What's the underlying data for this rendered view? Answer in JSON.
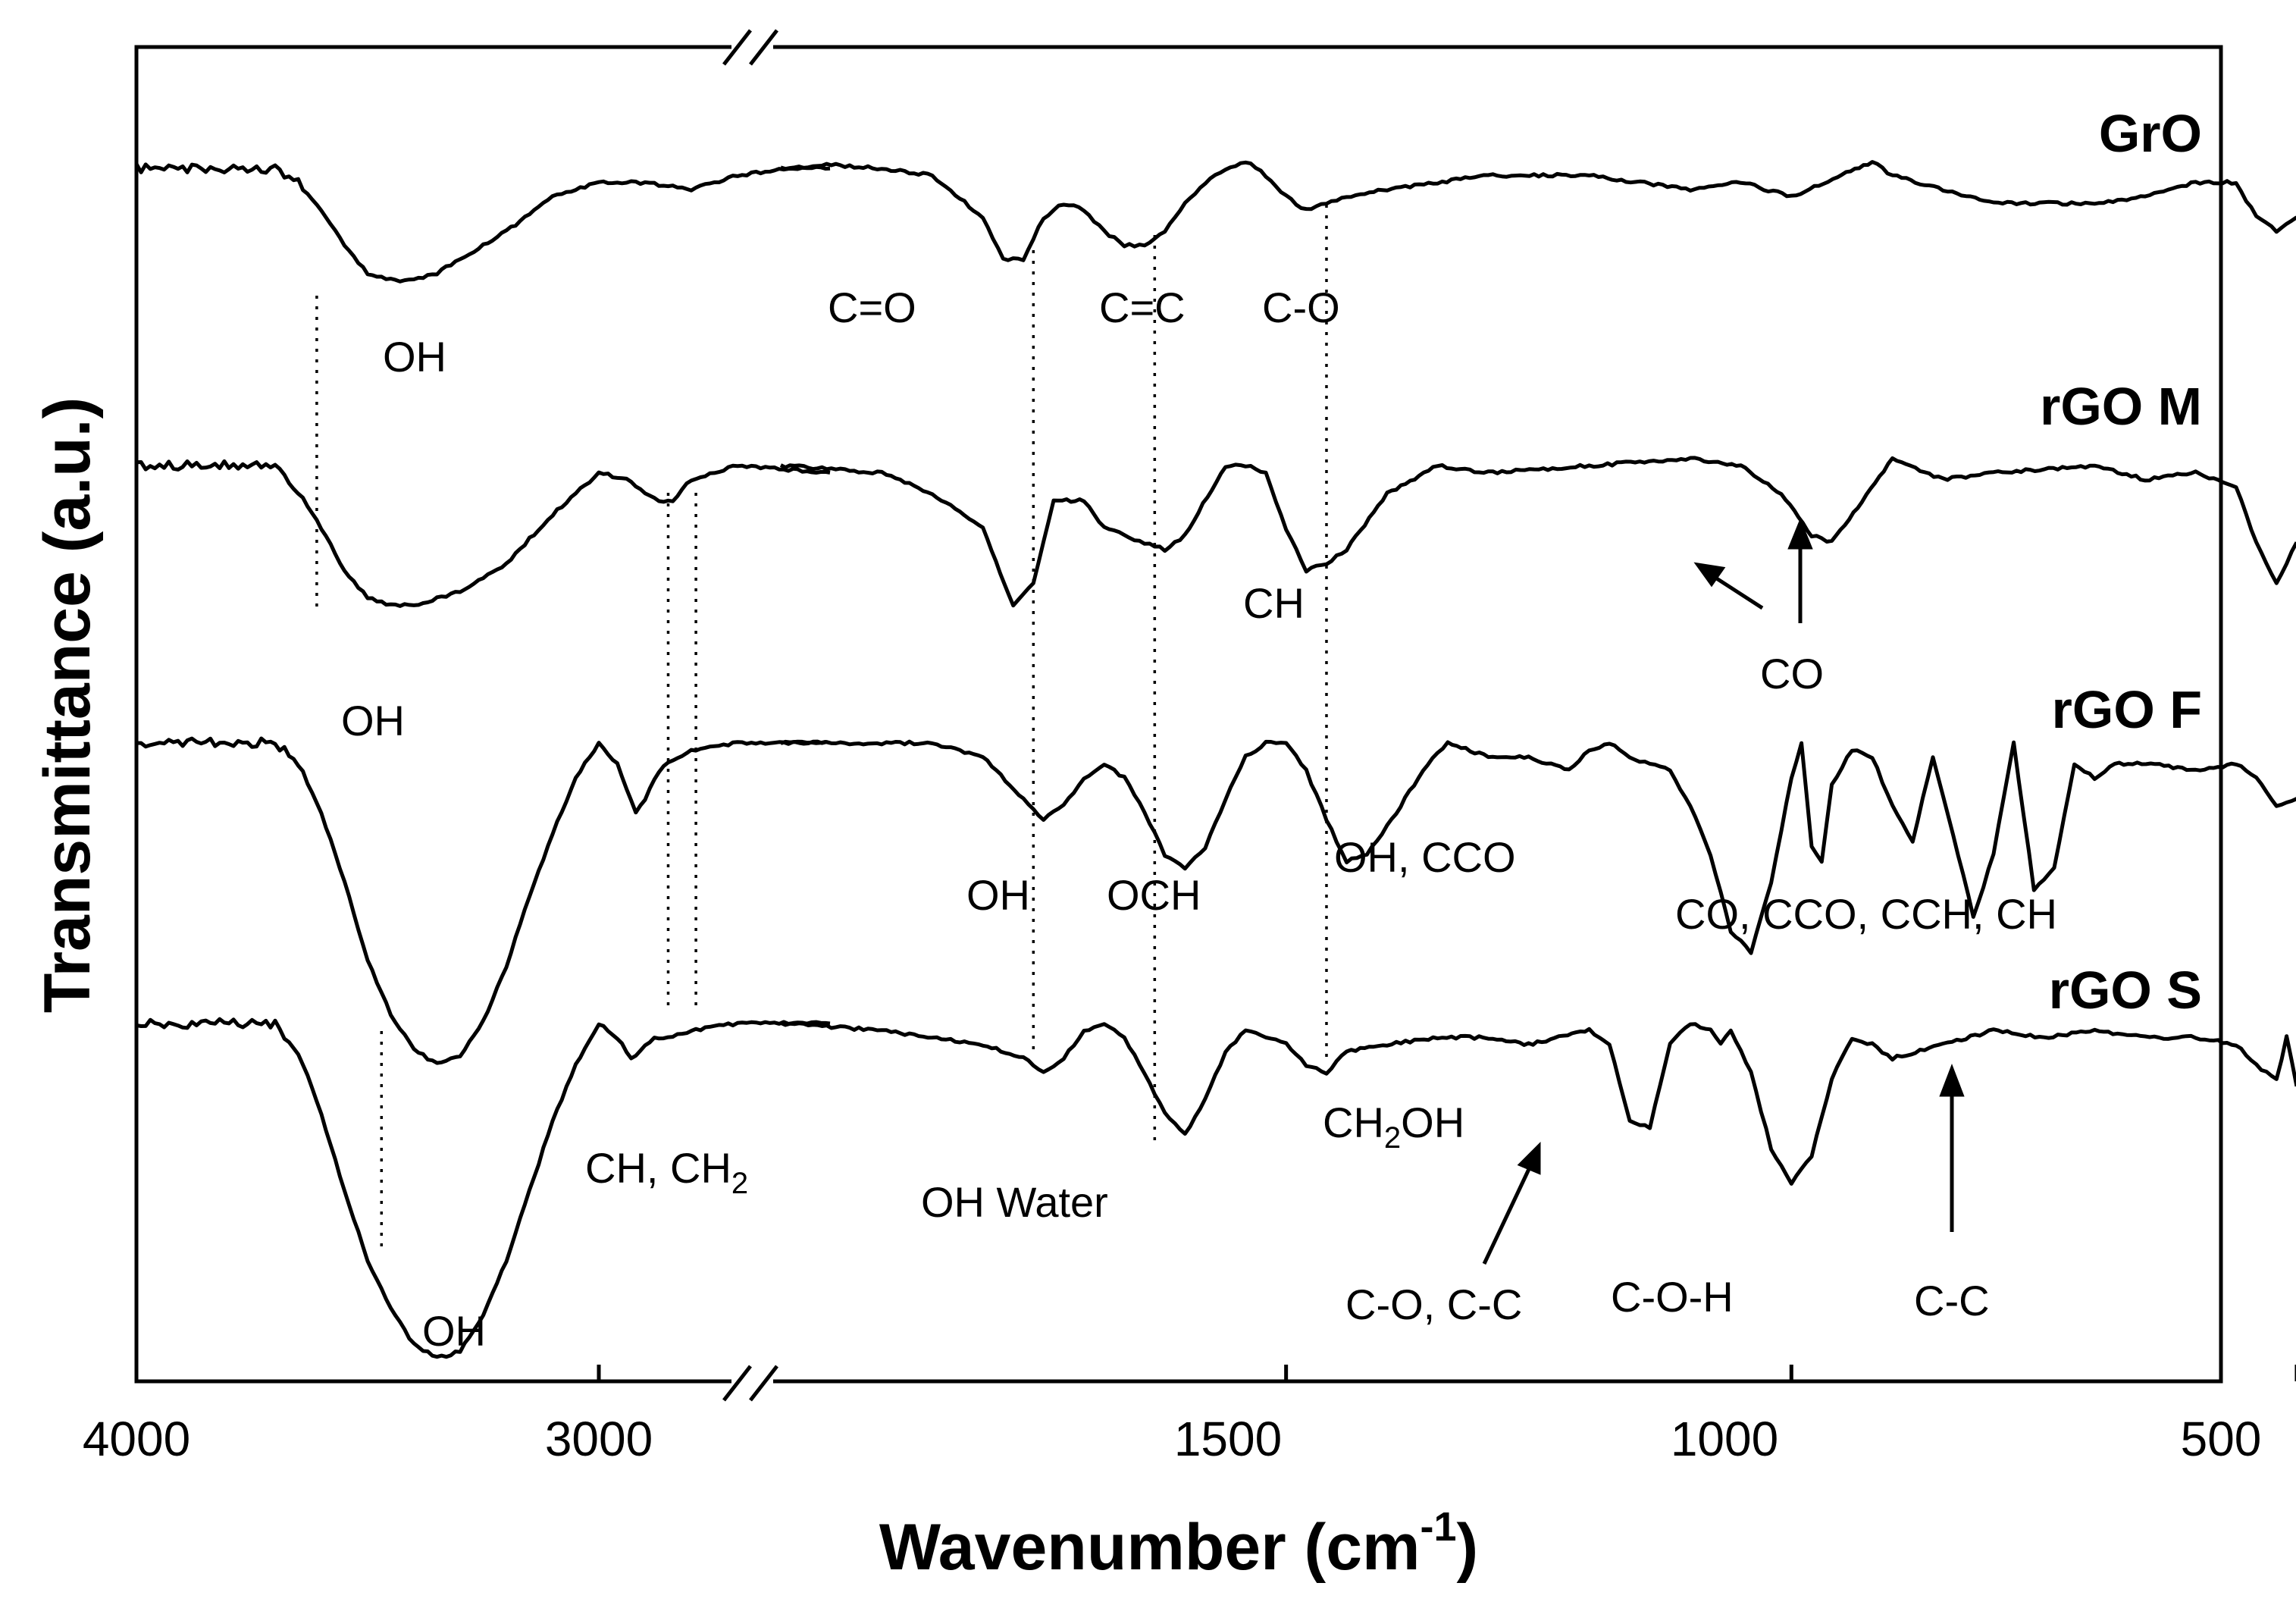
{
  "chart_data": {
    "type": "line",
    "title": "",
    "xlabel": "Wavenumber (cm",
    "xlabel_sup": "-1",
    "xlabel_close": ")",
    "ylabel": "Transmittance (a.u.)",
    "x_axis": {
      "reversed": true,
      "broken": true,
      "segments": [
        {
          "from": 4000,
          "to": 2500
        },
        {
          "from": 2000,
          "to": 500
        }
      ],
      "tick_labels": [
        {
          "value": 4000,
          "label": "4000"
        },
        {
          "value": 3000,
          "label": "3000"
        },
        {
          "value": 1500,
          "label": "1500"
        },
        {
          "value": 1000,
          "label": "1000"
        },
        {
          "value": 500,
          "label": "500"
        }
      ]
    },
    "series": [
      {
        "name": "GrO",
        "x": [
          4000,
          3900,
          3800,
          3700,
          3650,
          3600,
          3550,
          3500,
          3450,
          3400,
          3350,
          3300,
          3200,
          3100,
          3000,
          2900,
          2800,
          2700,
          2600,
          2500,
          2000,
          1950,
          1900,
          1850,
          1800,
          1780,
          1760,
          1740,
          1720,
          1700,
          1680,
          1660,
          1640,
          1620,
          1600,
          1580,
          1560,
          1540,
          1520,
          1500,
          1480,
          1460,
          1440,
          1400,
          1300,
          1200,
          1100,
          1050,
          1000,
          950,
          920,
          900,
          850,
          800,
          700,
          650,
          600,
          560,
          540,
          520,
          500
        ],
        "y": [
          0.1,
          0.1,
          0.1,
          0.1,
          0.3,
          0.7,
          1.2,
          1.6,
          1.7,
          1.7,
          1.6,
          1.4,
          1.0,
          0.5,
          0.3,
          0.3,
          0.4,
          0.2,
          0.1,
          0.1,
          0.1,
          0.05,
          0.1,
          0.2,
          0.8,
          1.4,
          1.4,
          0.8,
          0.6,
          0.7,
          1.0,
          1.2,
          1.2,
          1.0,
          0.6,
          0.3,
          0.1,
          0.0,
          0.2,
          0.5,
          0.7,
          0.6,
          0.5,
          0.4,
          0.2,
          0.2,
          0.4,
          0.3,
          0.5,
          0.2,
          0.0,
          0.2,
          0.4,
          0.6,
          0.6,
          0.5,
          0.3,
          0.3,
          0.8,
          1.0,
          0.8
        ]
      },
      {
        "name": "rGO M",
        "x": [
          4000,
          3900,
          3800,
          3700,
          3650,
          3600,
          3550,
          3500,
          3450,
          3400,
          3300,
          3200,
          3100,
          3000,
          2940,
          2900,
          2870,
          2840,
          2800,
          2700,
          2500,
          2000,
          1900,
          1850,
          1800,
          1770,
          1750,
          1730,
          1700,
          1680,
          1660,
          1640,
          1620,
          1600,
          1560,
          1540,
          1520,
          1500,
          1480,
          1460,
          1440,
          1400,
          1350,
          1300,
          1200,
          1100,
          1050,
          1010,
          980,
          960,
          930,
          900,
          850,
          800,
          700,
          650,
          600,
          560,
          540,
          520,
          500
        ],
        "y": [
          0.1,
          0.1,
          0.1,
          0.1,
          0.5,
          1.0,
          1.6,
          2.0,
          2.1,
          2.1,
          1.9,
          1.5,
          0.8,
          0.2,
          0.3,
          0.5,
          0.6,
          0.6,
          0.3,
          0.1,
          0.2,
          0.1,
          0.2,
          0.5,
          1.0,
          2.1,
          1.8,
          0.6,
          0.6,
          1.0,
          1.1,
          1.2,
          1.3,
          1.1,
          0.1,
          0.1,
          0.2,
          1.0,
          1.6,
          1.5,
          1.3,
          0.5,
          0.1,
          0.2,
          0.1,
          0.0,
          0.1,
          0.5,
          1.1,
          1.2,
          0.6,
          0.0,
          0.3,
          0.2,
          0.1,
          0.3,
          0.2,
          0.4,
          1.2,
          1.8,
          1.2
        ]
      },
      {
        "name": "rGO F",
        "x": [
          4000,
          3900,
          3800,
          3700,
          3650,
          3600,
          3550,
          3500,
          3450,
          3400,
          3350,
          3300,
          3250,
          3200,
          3150,
          3100,
          3050,
          3000,
          2960,
          2920,
          2900,
          2870,
          2850,
          2800,
          2700,
          2600,
          2500,
          2000,
          1900,
          1850,
          1800,
          1760,
          1740,
          1720,
          1700,
          1680,
          1660,
          1640,
          1620,
          1600,
          1580,
          1560,
          1540,
          1520,
          1500,
          1480,
          1460,
          1440,
          1420,
          1400,
          1360,
          1340,
          1300,
          1260,
          1220,
          1200,
          1180,
          1160,
          1140,
          1120,
          1100,
          1080,
          1060,
          1040,
          1020,
          1000,
          990,
          980,
          970,
          960,
          940,
          920,
          900,
          880,
          860,
          840,
          820,
          800,
          780,
          760,
          740,
          720,
          700,
          680,
          640,
          600,
          560,
          540,
          520,
          500
        ],
        "y": [
          0.0,
          0.0,
          0.0,
          0.0,
          0.3,
          1.0,
          2.0,
          3.1,
          3.9,
          4.4,
          4.6,
          4.5,
          4.0,
          3.2,
          2.2,
          1.3,
          0.5,
          0.0,
          0.3,
          1.0,
          0.8,
          0.4,
          0.3,
          0.1,
          0.0,
          0.0,
          0.0,
          0.0,
          0.0,
          0.0,
          0.2,
          0.8,
          1.1,
          0.9,
          0.5,
          0.3,
          0.5,
          1.0,
          1.6,
          1.8,
          1.5,
          0.8,
          0.2,
          0.0,
          0.0,
          0.4,
          1.1,
          1.7,
          1.6,
          1.2,
          0.3,
          0.0,
          0.2,
          0.2,
          0.4,
          0.1,
          0.0,
          0.2,
          0.3,
          0.4,
          0.9,
          1.6,
          2.7,
          3.0,
          2.0,
          0.5,
          0.0,
          1.5,
          1.7,
          0.6,
          0.1,
          0.2,
          0.9,
          1.4,
          0.2,
          1.3,
          2.5,
          1.6,
          0.0,
          2.1,
          1.8,
          0.3,
          0.5,
          0.3,
          0.3,
          0.4,
          0.3,
          0.5,
          0.9,
          0.8
        ]
      },
      {
        "name": "rGO S",
        "x": [
          4000,
          3900,
          3800,
          3700,
          3650,
          3600,
          3550,
          3500,
          3450,
          3400,
          3350,
          3300,
          3250,
          3200,
          3150,
          3100,
          3050,
          3000,
          2960,
          2930,
          2910,
          2880,
          2850,
          2800,
          2700,
          2600,
          2500,
          2000,
          1900,
          1850,
          1800,
          1760,
          1740,
          1720,
          1700,
          1680,
          1660,
          1640,
          1620,
          1600,
          1580,
          1560,
          1540,
          1520,
          1500,
          1480,
          1460,
          1440,
          1400,
          1350,
          1300,
          1260,
          1230,
          1200,
          1180,
          1160,
          1140,
          1120,
          1100,
          1080,
          1070,
          1060,
          1040,
          1020,
          1000,
          980,
          960,
          940,
          920,
          900,
          850,
          800,
          750,
          700,
          650,
          600,
          560,
          540,
          520,
          510,
          500
        ],
        "y": [
          0.0,
          0.0,
          0.0,
          0.0,
          0.4,
          1.3,
          2.4,
          3.4,
          4.1,
          4.6,
          4.8,
          4.7,
          4.2,
          3.4,
          2.4,
          1.4,
          0.6,
          0.0,
          0.2,
          0.5,
          0.4,
          0.2,
          0.2,
          0.1,
          0.0,
          0.0,
          0.0,
          0.0,
          0.1,
          0.2,
          0.3,
          0.5,
          0.7,
          0.5,
          0.1,
          0.0,
          0.2,
          0.7,
          1.3,
          1.6,
          1.1,
          0.4,
          0.1,
          0.2,
          0.3,
          0.6,
          0.7,
          0.4,
          0.3,
          0.2,
          0.2,
          0.3,
          0.2,
          0.1,
          0.3,
          1.4,
          1.5,
          0.3,
          0.0,
          0.1,
          0.3,
          0.1,
          0.7,
          1.8,
          2.3,
          1.9,
          0.8,
          0.2,
          0.3,
          0.5,
          0.3,
          0.1,
          0.2,
          0.1,
          0.2,
          0.2,
          0.3,
          0.6,
          0.8,
          0.2,
          0.9
        ]
      }
    ],
    "annotations": [
      {
        "text": "OH",
        "series": "GrO"
      },
      {
        "text": "C=O",
        "series": "GrO"
      },
      {
        "text": "C=C",
        "series": "GrO"
      },
      {
        "text": "C-O",
        "series": "GrO"
      },
      {
        "text": "OH",
        "series": "rGO M"
      },
      {
        "text": "CH",
        "series": "rGO M"
      },
      {
        "text": "CO",
        "series": "rGO M"
      },
      {
        "text": "OH",
        "series": "rGO F"
      },
      {
        "text": "OCH",
        "series": "rGO F"
      },
      {
        "text": "OH, CCO",
        "series": "rGO F"
      },
      {
        "text": "CO, CCO, CCH, CH",
        "series": "rGO F"
      },
      {
        "text": "CH, CH",
        "sub": "2",
        "series": "rGO S"
      },
      {
        "text": "OH Water",
        "series": "rGO S"
      },
      {
        "text": "CH",
        "sub": "2",
        "tail": "OH",
        "series": "rGO S"
      },
      {
        "text": "C-O, C-C",
        "series": "rGO S"
      },
      {
        "text": "C-O-H",
        "series": "rGO S"
      },
      {
        "text": "C-C",
        "series": "rGO S"
      },
      {
        "text": "OH",
        "series": "rGO S"
      }
    ],
    "peak_markers": [
      3610,
      2850,
      2790,
      1750,
      1630,
      1460,
      3470
    ],
    "legend": "labels placed right of each trace"
  }
}
